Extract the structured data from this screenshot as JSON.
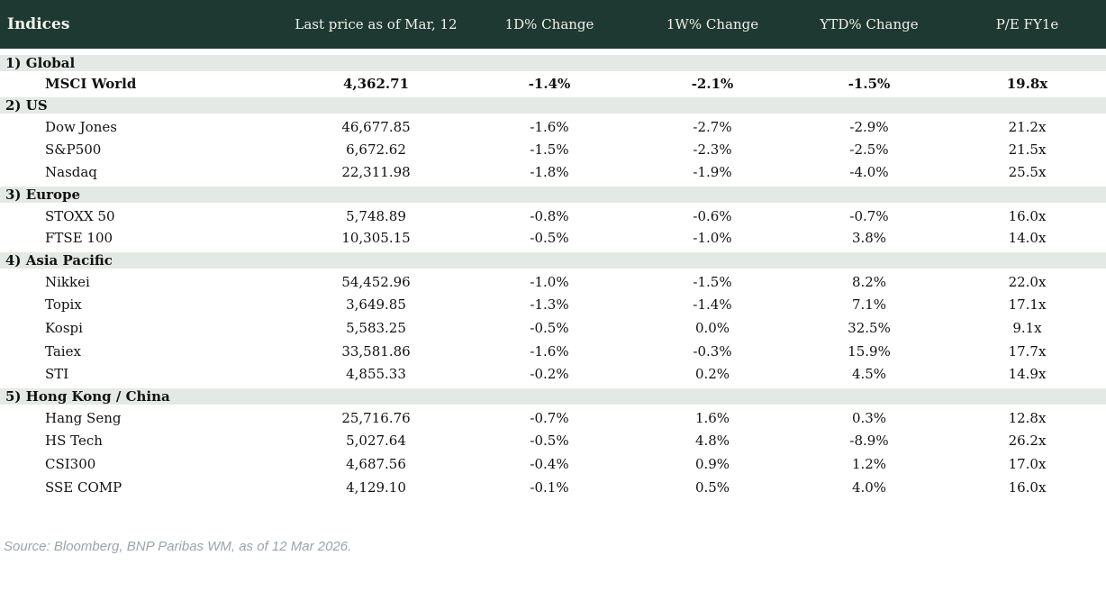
{
  "header": {
    "title": "Indices",
    "columns": [
      "Last price as of Mar, 12",
      "1D% Change",
      "1W% Change",
      "YTD% Change",
      "P/E FY1e"
    ]
  },
  "sections": [
    {
      "label": "1) Global",
      "rows": [
        {
          "name": "MSCI World",
          "last": "4,362.71",
          "bold": true,
          "changes": [
            {
              "v": "-1.4%",
              "c": "neg"
            },
            {
              "v": "-2.1%",
              "c": "neg"
            },
            {
              "v": "-1.5%",
              "c": "neg"
            }
          ],
          "pe": "19.8x"
        }
      ]
    },
    {
      "label": "2) US",
      "rows": [
        {
          "name": "Dow Jones",
          "last": "46,677.85",
          "changes": [
            {
              "v": "-1.6%",
              "c": "neg"
            },
            {
              "v": "-2.7%",
              "c": "neg"
            },
            {
              "v": "-2.9%",
              "c": "neg"
            }
          ],
          "pe": "21.2x"
        },
        {
          "name": "S&P500",
          "last": "6,672.62",
          "changes": [
            {
              "v": "-1.5%",
              "c": "neg"
            },
            {
              "v": "-2.3%",
              "c": "neg"
            },
            {
              "v": "-2.5%",
              "c": "neg"
            }
          ],
          "pe": "21.5x"
        },
        {
          "name": "Nasdaq",
          "last": "22,311.98",
          "changes": [
            {
              "v": "-1.8%",
              "c": "neg"
            },
            {
              "v": "-1.9%",
              "c": "neg"
            },
            {
              "v": "-4.0%",
              "c": "neg"
            }
          ],
          "pe": "25.5x"
        }
      ]
    },
    {
      "label": "3) Europe",
      "rows": [
        {
          "name": "STOXX 50",
          "last": "5,748.89",
          "changes": [
            {
              "v": "-0.8%",
              "c": "neg"
            },
            {
              "v": "-0.6%",
              "c": "neg"
            },
            {
              "v": "-0.7%",
              "c": "neg"
            }
          ],
          "pe": "16.0x"
        },
        {
          "name": "FTSE 100",
          "last": "10,305.15",
          "changes": [
            {
              "v": "-0.5%",
              "c": "neg"
            },
            {
              "v": "-1.0%",
              "c": "neg"
            },
            {
              "v": "3.8%",
              "c": "pos"
            }
          ],
          "pe": "14.0x"
        }
      ]
    },
    {
      "label": "4) Asia Pacific",
      "rows": [
        {
          "name": "Nikkei",
          "last": "54,452.96",
          "changes": [
            {
              "v": "-1.0%",
              "c": "neg"
            },
            {
              "v": "-1.5%",
              "c": "neg"
            },
            {
              "v": "8.2%",
              "c": "pos"
            }
          ],
          "pe": "22.0x"
        },
        {
          "name": "Topix",
          "last": "3,649.85",
          "changes": [
            {
              "v": "-1.3%",
              "c": "neg"
            },
            {
              "v": "-1.4%",
              "c": "neg"
            },
            {
              "v": "7.1%",
              "c": "pos"
            }
          ],
          "pe": "17.1x"
        },
        {
          "name": "Kospi",
          "last": "5,583.25",
          "changes": [
            {
              "v": "-0.5%",
              "c": "neg"
            },
            {
              "v": "0.0%",
              "c": "neg"
            },
            {
              "v": "32.5%",
              "c": "pos"
            }
          ],
          "pe": "9.1x"
        },
        {
          "name": "Taiex",
          "last": "33,581.86",
          "changes": [
            {
              "v": "-1.6%",
              "c": "neg"
            },
            {
              "v": "-0.3%",
              "c": "neg"
            },
            {
              "v": "15.9%",
              "c": "pos"
            }
          ],
          "pe": "17.7x"
        },
        {
          "name": "STI",
          "last": "4,855.33",
          "changes": [
            {
              "v": "-0.2%",
              "c": "neg"
            },
            {
              "v": "0.2%",
              "c": "pos"
            },
            {
              "v": "4.5%",
              "c": "pos"
            }
          ],
          "pe": "14.9x"
        }
      ]
    },
    {
      "label": "5) Hong Kong / China",
      "rows": [
        {
          "name": "Hang Seng",
          "last": "25,716.76",
          "changes": [
            {
              "v": "-0.7%",
              "c": "neg"
            },
            {
              "v": "1.6%",
              "c": "pos"
            },
            {
              "v": "0.3%",
              "c": "pos"
            }
          ],
          "pe": "12.8x"
        },
        {
          "name": "HS Tech",
          "last": "5,027.64",
          "changes": [
            {
              "v": "-0.5%",
              "c": "neg"
            },
            {
              "v": "4.8%",
              "c": "pos"
            },
            {
              "v": "-8.9%",
              "c": "neg"
            }
          ],
          "pe": "26.2x"
        },
        {
          "name": "CSI300",
          "last": "4,687.56",
          "changes": [
            {
              "v": "-0.4%",
              "c": "neg"
            },
            {
              "v": "0.9%",
              "c": "pos"
            },
            {
              "v": "1.2%",
              "c": "pos"
            }
          ],
          "pe": "17.0x"
        },
        {
          "name": "SSE COMP",
          "last": "4,129.10",
          "changes": [
            {
              "v": "-0.1%",
              "c": "neg"
            },
            {
              "v": "0.5%",
              "c": "pos"
            },
            {
              "v": "4.0%",
              "c": "pos"
            }
          ],
          "pe": "16.0x"
        }
      ]
    }
  ],
  "footer": {
    "source": "Source: Bloomberg, BNP Paribas WM, as of 12 Mar 2026."
  },
  "colors": {
    "header_bg": "#1e3932",
    "header_fg": "#f2f1ea",
    "section_band_bg": "#e4e9e5",
    "negative": "#c00000",
    "positive": "#168a3d"
  }
}
